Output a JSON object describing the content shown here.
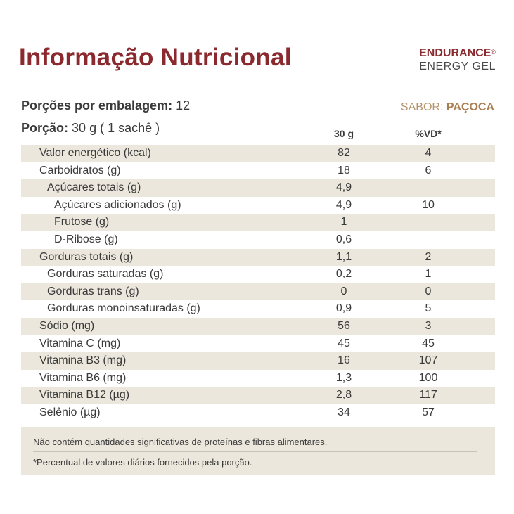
{
  "title": "Informação Nutricional",
  "brand": {
    "name": "ENDURANCE",
    "mark": "®",
    "sub": "ENERGY GEL"
  },
  "servings": {
    "label": "Porções por embalagem:",
    "value": "12"
  },
  "portion": {
    "label": "Porção:",
    "value": "30 g ( 1 sachê )"
  },
  "flavor": {
    "label": "SABOR:",
    "value": "PAÇOCA"
  },
  "columns": {
    "qty": "30 g",
    "vd": "%VD*"
  },
  "rows": [
    {
      "name": "Valor energético (kcal)",
      "qty": "82",
      "vd": "4"
    },
    {
      "name": "Carboidratos (g)",
      "qty": "18",
      "vd": "6"
    },
    {
      "name": "Açúcares totais (g)",
      "qty": "4,9",
      "vd": ""
    },
    {
      "name": "Açúcares adicionados (g)",
      "qty": "4,9",
      "vd": "10"
    },
    {
      "name": "Frutose (g)",
      "qty": "1",
      "vd": ""
    },
    {
      "name": "D-Ribose (g)",
      "qty": "0,6",
      "vd": ""
    },
    {
      "name": "Gorduras totais (g)",
      "qty": "1,1",
      "vd": "2"
    },
    {
      "name": "Gorduras saturadas (g)",
      "qty": "0,2",
      "vd": "1"
    },
    {
      "name": "Gorduras trans (g)",
      "qty": "0",
      "vd": "0"
    },
    {
      "name": "Gorduras monoinsaturadas (g)",
      "qty": "0,9",
      "vd": "5"
    },
    {
      "name": "Sódio (mg)",
      "qty": "56",
      "vd": "3"
    },
    {
      "name": "Vitamina C (mg)",
      "qty": "45",
      "vd": "45"
    },
    {
      "name": "Vitamina B3 (mg)",
      "qty": "16",
      "vd": "107"
    },
    {
      "name": "Vitamina B6 (mg)",
      "qty": "1,3",
      "vd": "100"
    },
    {
      "name": "Vitamina B12 (µg)",
      "qty": "2,8",
      "vd": "117"
    },
    {
      "name": "Selênio (µg)",
      "qty": "34",
      "vd": "57"
    }
  ],
  "footer": {
    "note1": "Não contém quantidades significativas de proteínas e fibras alimentares.",
    "note2": "*Percentual de valores diários fornecidos pela porção."
  },
  "colors": {
    "title": "#8b2a2e",
    "flavor": "#a97e50",
    "shade": "#ece7dd"
  }
}
